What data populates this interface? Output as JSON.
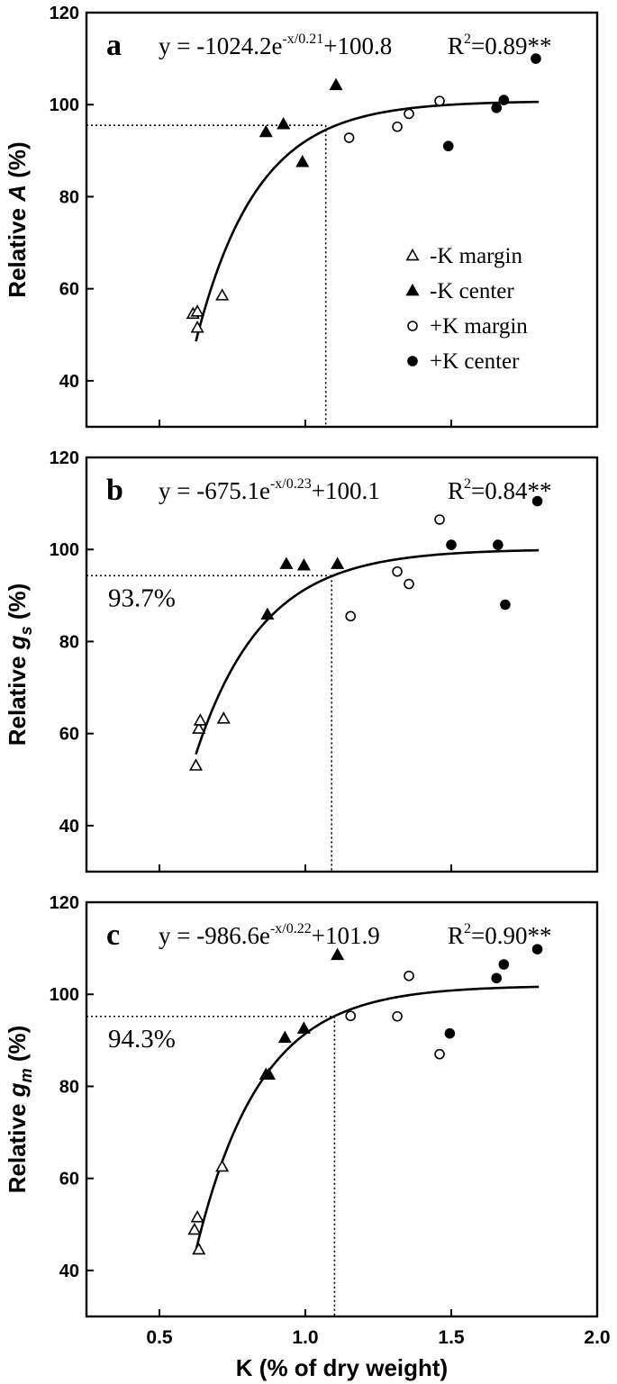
{
  "chart_data": [
    {
      "type": "scatter",
      "panel": "a",
      "ylabel_prefix": "Relative",
      "ylabel_var": "A",
      "ylabel_sub": "",
      "ylabel_suffix": "(%)",
      "ylim": [
        30,
        120
      ],
      "yticks": [
        "40",
        "60",
        "80",
        "100",
        "120"
      ],
      "equation": "y = -1024.2e",
      "equation_exp": "-x/0.21",
      "equation_tail": "+100.8",
      "r2_prefix": "R",
      "r2_sup": "2",
      "r2_value": "=0.89**",
      "fit": {
        "a": -1024.2,
        "b": 0.21,
        "c": 100.8,
        "xrange": [
          0.625,
          1.8
        ]
      },
      "threshold": {
        "x": 1.07,
        "y": 95.5,
        "label": ""
      },
      "legend": [
        {
          "marker": "open-triangle",
          "label": "-K margin"
        },
        {
          "marker": "filled-triangle",
          "label": "-K center"
        },
        {
          "marker": "open-circle",
          "label": "+K margin"
        },
        {
          "marker": "filled-circle",
          "label": "+K center"
        }
      ],
      "series": [
        {
          "name": "-K margin",
          "marker": "open-triangle",
          "x": [
            0.615,
            0.63,
            0.63,
            0.715
          ],
          "y": [
            54.5,
            55,
            51.5,
            58.5
          ]
        },
        {
          "name": "-K center",
          "marker": "filled-triangle",
          "x": [
            0.865,
            0.925,
            0.99,
            1.105
          ],
          "y": [
            94,
            95.7,
            87.5,
            104.2
          ]
        },
        {
          "name": "+K margin",
          "marker": "open-circle",
          "x": [
            1.15,
            1.315,
            1.355,
            1.46
          ],
          "y": [
            92.8,
            95.2,
            98,
            100.8
          ]
        },
        {
          "name": "+K center",
          "marker": "filled-circle",
          "x": [
            1.49,
            1.655,
            1.68,
            1.79
          ],
          "y": [
            91,
            99.3,
            101,
            110
          ]
        }
      ]
    },
    {
      "type": "scatter",
      "panel": "b",
      "ylabel_prefix": "Relative",
      "ylabel_var": "g",
      "ylabel_sub": "s",
      "ylabel_suffix": "(%)",
      "ylim": [
        30,
        120
      ],
      "yticks": [
        "40",
        "60",
        "80",
        "100",
        "120"
      ],
      "equation": "y = -675.1e",
      "equation_exp": "-x/0.23",
      "equation_tail": "+100.1",
      "r2_prefix": "R",
      "r2_sup": "2",
      "r2_value": "=0.84**",
      "fit": {
        "a": -675.1,
        "b": 0.23,
        "c": 100.1,
        "xrange": [
          0.625,
          1.8
        ]
      },
      "threshold": {
        "x": 1.09,
        "y": 94.3,
        "label": "93.7%"
      },
      "series": [
        {
          "name": "-K margin",
          "marker": "open-triangle",
          "x": [
            0.625,
            0.635,
            0.64,
            0.72
          ],
          "y": [
            53,
            61,
            62.8,
            63.2
          ]
        },
        {
          "name": "-K center",
          "marker": "filled-triangle",
          "x": [
            0.87,
            0.935,
            0.995,
            1.11
          ],
          "y": [
            85.8,
            96.8,
            96.5,
            96.8
          ]
        },
        {
          "name": "+K margin",
          "marker": "open-circle",
          "x": [
            1.155,
            1.315,
            1.355,
            1.46
          ],
          "y": [
            85.5,
            95.2,
            92.5,
            106.5
          ]
        },
        {
          "name": "+K center",
          "marker": "filled-circle",
          "x": [
            1.5,
            1.66,
            1.685,
            1.795
          ],
          "y": [
            101,
            101,
            88,
            110.5
          ]
        }
      ]
    },
    {
      "type": "scatter",
      "panel": "c",
      "ylabel_prefix": "Relative",
      "ylabel_var": "g",
      "ylabel_sub": "m",
      "ylabel_suffix": "(%)",
      "ylim": [
        30,
        120
      ],
      "yticks": [
        "40",
        "60",
        "80",
        "100",
        "120"
      ],
      "xlim": [
        0.25,
        2.0
      ],
      "xticks": [
        "0.5",
        "1.0",
        "1.5",
        "2.0"
      ],
      "xlabel": "K (% of dry weight)",
      "equation": "y = -986.6e",
      "equation_exp": "-x/0.22",
      "equation_tail": "+101.9",
      "r2_prefix": "R",
      "r2_sup": "2",
      "r2_value": "=0.90**",
      "fit": {
        "a": -986.6,
        "b": 0.22,
        "c": 101.9,
        "xrange": [
          0.625,
          1.8
        ]
      },
      "threshold": {
        "x": 1.1,
        "y": 95.2,
        "label": "94.3%"
      },
      "series": [
        {
          "name": "-K margin",
          "marker": "open-triangle",
          "x": [
            0.62,
            0.63,
            0.635,
            0.715
          ],
          "y": [
            48.8,
            51.5,
            44.5,
            62.5
          ]
        },
        {
          "name": "-K center",
          "marker": "filled-triangle",
          "x": [
            0.865,
            0.875,
            0.93,
            0.995,
            1.11
          ],
          "y": [
            82.5,
            82.5,
            90.5,
            92.5,
            108.5
          ]
        },
        {
          "name": "+K margin",
          "marker": "open-circle",
          "x": [
            1.155,
            1.315,
            1.355,
            1.46
          ],
          "y": [
            95.3,
            95.2,
            104,
            87
          ]
        },
        {
          "name": "+K center",
          "marker": "filled-circle",
          "x": [
            1.495,
            1.655,
            1.68,
            1.795
          ],
          "y": [
            91.5,
            103.5,
            106.5,
            109.8
          ]
        }
      ]
    }
  ]
}
